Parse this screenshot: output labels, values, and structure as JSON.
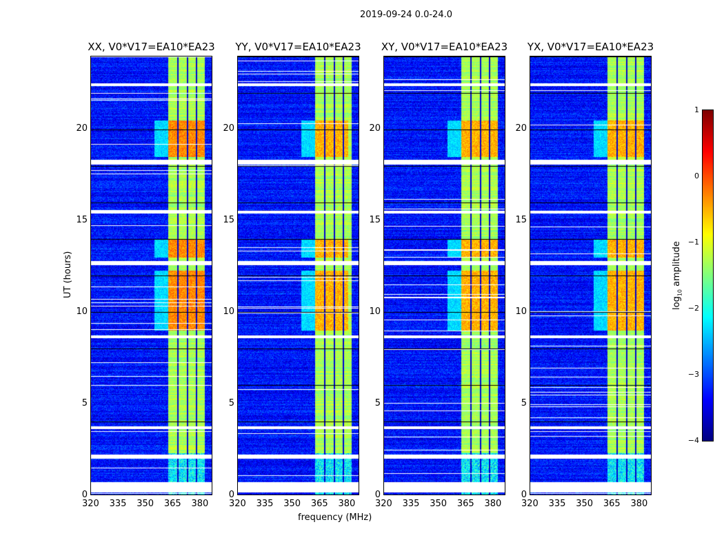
{
  "chart_data": {
    "type": "heatmap",
    "title": "2019-09-24 0.0-24.0",
    "xlabel": "frequency (MHz)",
    "ylabel": "UT (hours)",
    "xlim": [
      320,
      387
    ],
    "ylim": [
      0,
      24
    ],
    "xticks": [
      "320",
      "335",
      "350",
      "365",
      "380"
    ],
    "xtick_values": [
      320,
      335,
      350,
      365,
      380
    ],
    "yticks": [
      "0",
      "5",
      "10",
      "15",
      "20"
    ],
    "ytick_values": [
      0,
      5,
      10,
      15,
      20
    ],
    "panels": [
      {
        "title": "XX, V0*V17=EA10*EA23"
      },
      {
        "title": "YY, V0*V17=EA10*EA23"
      },
      {
        "title": "XY, V0*V17=EA10*EA23"
      },
      {
        "title": "YX, V0*V17=EA10*EA23"
      }
    ],
    "signal_band_mhz": [
      362.5,
      383
    ],
    "subband_edges_mhz": [
      368,
      373.5,
      378.5
    ],
    "background_log_amp": -3.3,
    "band_log_amp": -1.3,
    "burst_log_amp": -0.3,
    "burst_intervals_hours": [
      [
        9,
        12.3
      ],
      [
        18.5,
        20.5
      ],
      [
        13,
        14
      ]
    ],
    "flagged_intervals_hours": [
      [
        0.15,
        0.7
      ],
      [
        2.0,
        2.2
      ],
      [
        3.6,
        3.75
      ],
      [
        8.6,
        8.75
      ],
      [
        18.1,
        18.35
      ],
      [
        22.4,
        22.55
      ],
      [
        12.6,
        12.8
      ],
      [
        15.4,
        15.55
      ]
    ],
    "colorbar": {
      "label": "log10 amplitude",
      "label_main": "log",
      "label_sub": "10",
      "label_rest": " amplitude",
      "range": [
        -4,
        1
      ],
      "ticks": [
        "1",
        "0",
        "−1",
        "−2",
        "−3",
        "−4"
      ],
      "tick_values": [
        1,
        0,
        -1,
        -2,
        -3,
        -4
      ],
      "colormap": "jet"
    }
  }
}
